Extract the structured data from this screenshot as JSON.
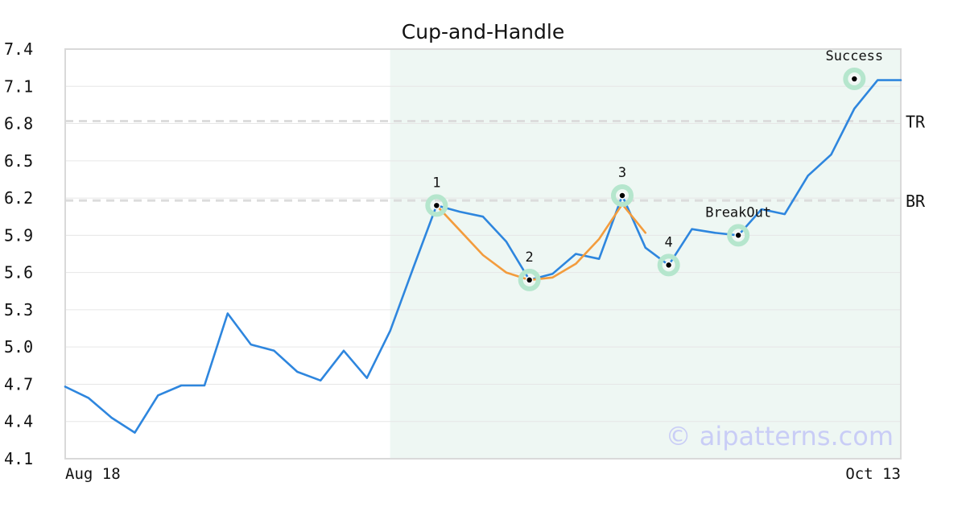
{
  "chart_data": {
    "type": "line",
    "title": "Cup-and-Handle",
    "xlabel": "",
    "ylabel": "",
    "ylim": [
      4.1,
      7.4
    ],
    "y_ticks": [
      "7.4",
      "7.1",
      "6.8",
      "6.5",
      "6.2",
      "5.9",
      "5.6",
      "5.3",
      "5.0",
      "4.7",
      "4.4",
      "4.1"
    ],
    "x_tick_labels": [
      "Aug 18",
      "Oct 13"
    ],
    "grid": true,
    "series": [
      {
        "values": [
          4.68,
          4.59,
          4.43,
          4.31,
          4.61,
          4.69,
          4.69,
          5.27,
          5.02,
          4.97,
          4.8,
          4.73,
          4.97,
          4.75,
          5.13,
          5.64,
          6.14,
          6.09,
          6.05,
          5.85,
          5.54,
          5.59,
          5.75,
          5.71,
          6.22,
          5.8,
          5.66,
          5.95,
          5.92,
          5.9,
          6.11,
          6.07,
          6.38,
          6.55,
          6.92,
          7.15,
          7.15
        ],
        "color": "#2e86de"
      },
      {
        "values": [
          6.14,
          5.94,
          5.74,
          5.6,
          5.54,
          5.56,
          5.67,
          5.87,
          6.15,
          5.92
        ],
        "start_index": 16,
        "color": "#f39c3d"
      }
    ],
    "highlight_region": {
      "start_index": 14,
      "end_index": 36,
      "color": "#eef7f3"
    },
    "reference_lines": [
      {
        "label": "TR",
        "value": 6.82
      },
      {
        "label": "BR",
        "value": 6.18
      }
    ],
    "points": [
      {
        "label": "1",
        "index": 16,
        "value": 6.14
      },
      {
        "label": "2",
        "index": 20,
        "value": 5.54
      },
      {
        "label": "3",
        "index": 24,
        "value": 6.22
      },
      {
        "label": "4",
        "index": 26,
        "value": 5.66
      },
      {
        "label": "BreakOut",
        "index": 29,
        "value": 5.9
      },
      {
        "label": "Success",
        "index": 34,
        "value": 7.16
      }
    ],
    "watermark": "© aipatterns.com"
  }
}
